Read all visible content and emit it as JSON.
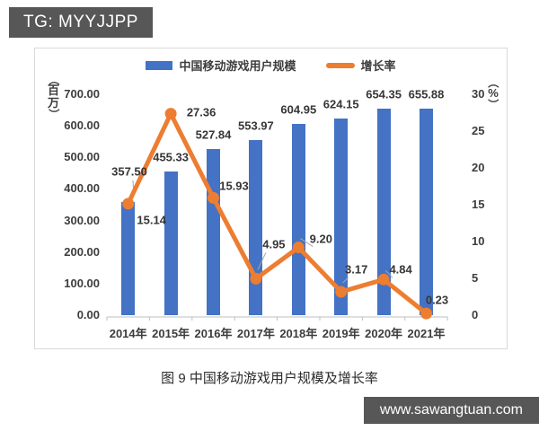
{
  "badge": {
    "text": "TG: MYYJJPP"
  },
  "watermark": {
    "text": "www.sawangtuan.com"
  },
  "caption": "图 9 中国移动游戏用户规模及增长率",
  "colors": {
    "bar": "#4472C4",
    "line": "#ED7D31",
    "badge_bg": "#575757",
    "box_border": "#D9D9D9",
    "axis_line": "#BFBFBF",
    "text": "#3D3D3D"
  },
  "chart_data": {
    "type": "bar",
    "combo": "bar+line",
    "title": "",
    "categories": [
      "2014年",
      "2015年",
      "2016年",
      "2017年",
      "2018年",
      "2019年",
      "2020年",
      "2021年"
    ],
    "series": [
      {
        "name": "中国移动游戏用户规模",
        "type": "bar",
        "axis": "left",
        "values": [
          357.5,
          455.33,
          527.84,
          553.97,
          604.95,
          624.15,
          654.35,
          655.88
        ]
      },
      {
        "name": "增长率",
        "type": "line",
        "axis": "right",
        "values": [
          15.14,
          27.36,
          15.93,
          4.95,
          9.2,
          3.17,
          4.84,
          0.23
        ]
      }
    ],
    "left_axis": {
      "unit_chars": [
        "百",
        "万"
      ],
      "min": 0,
      "max": 700,
      "tick_labels": [
        "700.00",
        "600.00",
        "500.00",
        "400.00",
        "300.00",
        "200.00",
        "100.00",
        "0.00"
      ]
    },
    "right_axis": {
      "unit_chars": [
        "%"
      ],
      "min": 0,
      "max": 30,
      "tick_labels": [
        "30",
        "25",
        "20",
        "15",
        "10",
        "5",
        "0"
      ]
    },
    "legend": [
      "中国移动游戏用户规模",
      "增长率"
    ],
    "grid": false,
    "legend_position": "top-center"
  }
}
